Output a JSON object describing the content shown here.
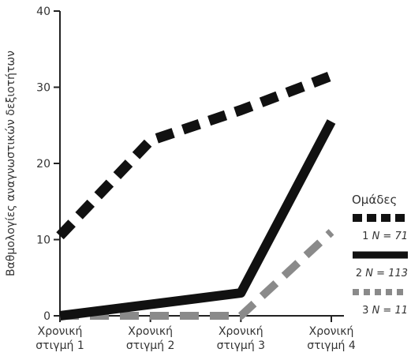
{
  "chart_data": {
    "type": "line",
    "title": "",
    "xlabel": "",
    "ylabel": "Βαθμολογίες αναγνωστικών δεξιοτήτων",
    "ylim": [
      0,
      40
    ],
    "yticks": [
      "0",
      "10",
      "20",
      "30",
      "40"
    ],
    "categories": [
      [
        "Χρονική",
        "στιγμή 1"
      ],
      [
        "Χρονική",
        "στιγμή 2"
      ],
      [
        "Χρονική",
        "στιγμή 3"
      ],
      [
        "Χρονική",
        "στιγμή 4"
      ]
    ],
    "legend": {
      "title": "Ομάδες",
      "placement": "right"
    },
    "series": [
      {
        "name": "1",
        "n_label": "N = 71",
        "values": [
          10.5,
          23,
          27,
          31.5
        ],
        "color": "#111111",
        "style": "dashed-heavy"
      },
      {
        "name": "2",
        "n_label": "N = 113",
        "values": [
          0,
          1.5,
          3,
          25.5
        ],
        "color": "#111111",
        "style": "solid"
      },
      {
        "name": "3",
        "n_label": "N = 11",
        "values": [
          0,
          0,
          0,
          11
        ],
        "color": "#8a8a8a",
        "style": "dashed-gray"
      }
    ]
  }
}
